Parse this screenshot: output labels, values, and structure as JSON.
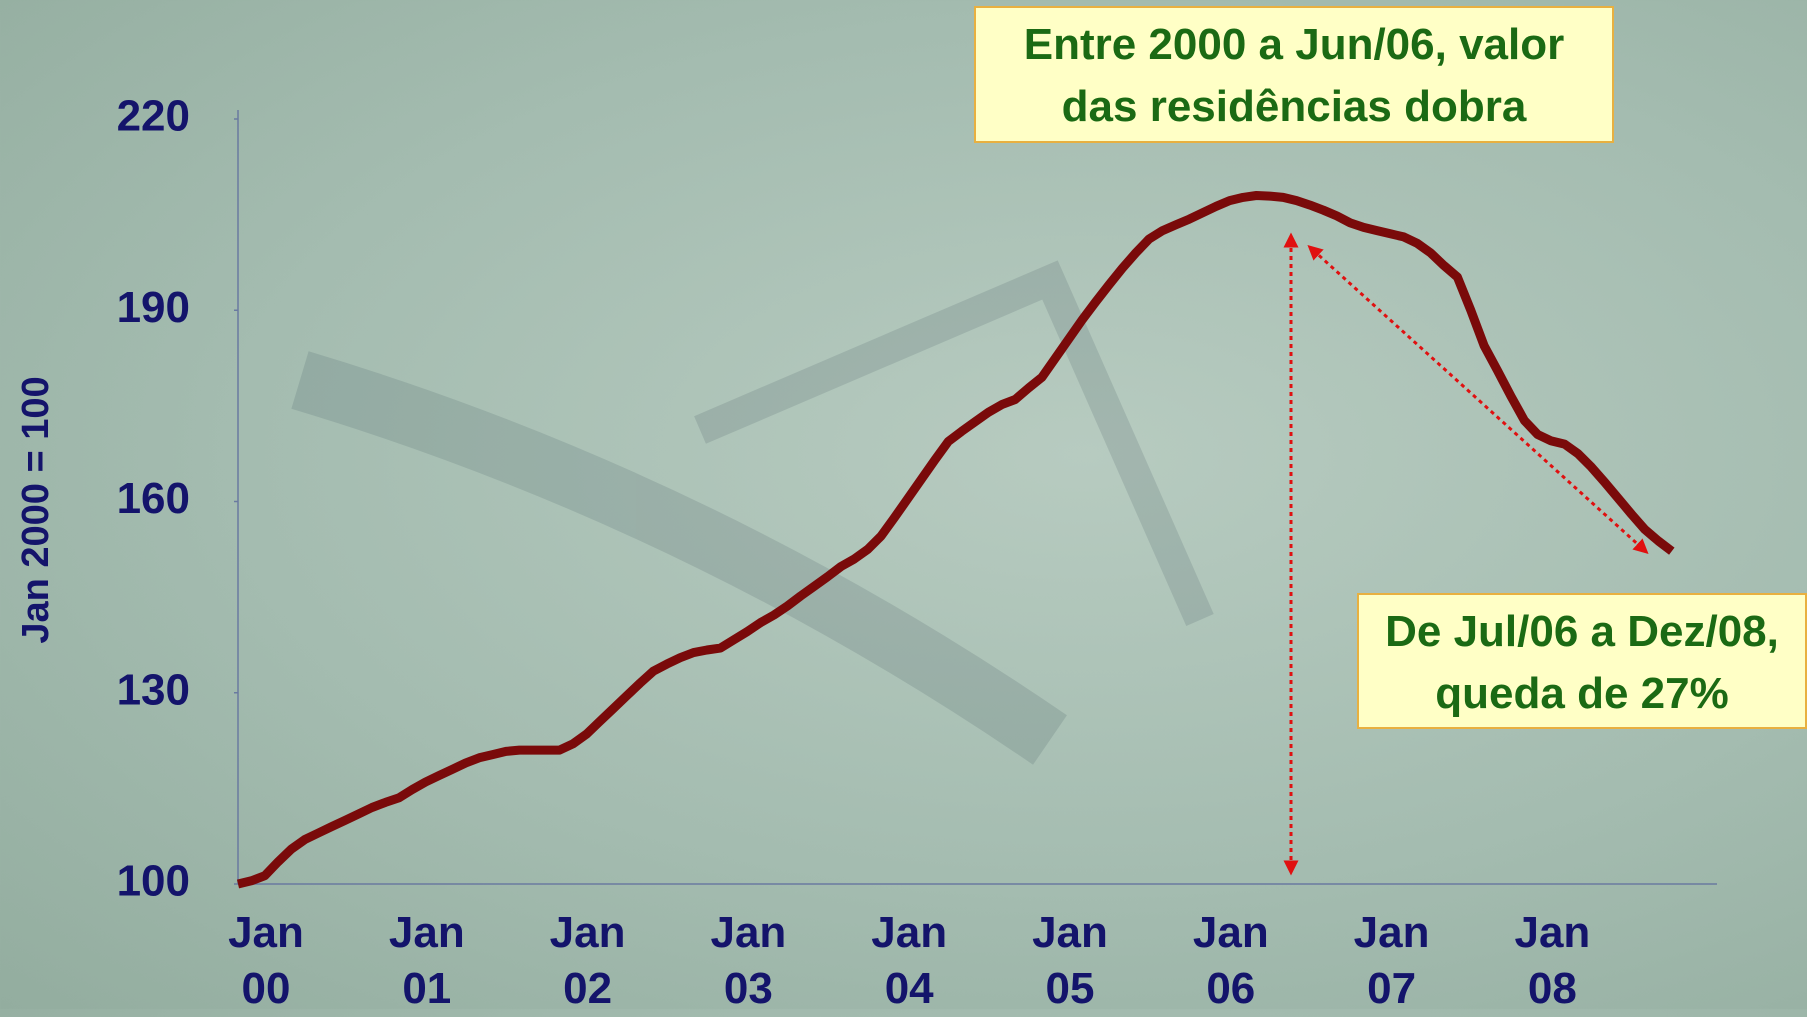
{
  "chart_data": {
    "type": "line",
    "y_label": "Jan 2000 = 100",
    "categories": [
      "Jan 00",
      null,
      null,
      null,
      null,
      null,
      null,
      null,
      null,
      null,
      null,
      null,
      "Jan 01",
      null,
      null,
      null,
      null,
      null,
      null,
      null,
      null,
      null,
      null,
      null,
      "Jan 02",
      null,
      null,
      null,
      null,
      null,
      null,
      null,
      null,
      null,
      null,
      null,
      "Jan 03",
      null,
      null,
      null,
      null,
      null,
      null,
      null,
      null,
      null,
      null,
      null,
      "Jan 04",
      null,
      null,
      null,
      null,
      null,
      null,
      null,
      null,
      null,
      null,
      null,
      "Jan 05",
      null,
      null,
      null,
      null,
      null,
      null,
      null,
      null,
      null,
      null,
      null,
      "Jan 06",
      null,
      null,
      null,
      null,
      null,
      null,
      null,
      null,
      null,
      null,
      null,
      "Jan 07",
      null,
      null,
      null,
      null,
      null,
      null,
      null,
      null,
      null,
      null,
      null,
      "Jan 08",
      null,
      null,
      null,
      null,
      null,
      null,
      null,
      null,
      null,
      null,
      null
    ],
    "values": [
      100,
      100.5,
      101.3,
      103.5,
      105.5,
      107,
      108,
      109,
      110,
      111,
      112,
      112.8,
      113.5,
      114.8,
      116,
      117,
      118,
      119,
      119.8,
      120.3,
      120.8,
      121,
      121,
      121,
      121,
      122,
      123.5,
      125.5,
      127.5,
      129.5,
      131.5,
      133.4,
      134.5,
      135.5,
      136.3,
      136.7,
      137,
      138.3,
      139.6,
      141,
      142.2,
      143.6,
      145.2,
      146.7,
      148.2,
      149.8,
      151,
      152.5,
      154.6,
      157.5,
      160.5,
      163.5,
      166.5,
      169.4,
      171,
      172.5,
      174,
      175.2,
      176,
      177.8,
      179.5,
      182.5,
      185.5,
      188.5,
      191.3,
      194,
      196.6,
      199,
      201.2,
      202.5,
      203.4,
      204.3,
      205.3,
      206.3,
      207.2,
      207.7,
      208,
      207.9,
      207.7,
      207.2,
      206.5,
      205.7,
      204.8,
      203.7,
      203,
      202.5,
      202,
      201.5,
      200.5,
      199,
      197,
      195.2,
      190,
      184.4,
      180.5,
      176.5,
      172.7,
      170.5,
      169.5,
      169,
      167.5,
      165.4,
      163,
      160.5,
      158,
      155.6,
      153.8,
      152.2
    ],
    "color": "#7a0a0a",
    "ylim": [
      100,
      220
    ],
    "yticks": [
      100,
      130,
      160,
      190,
      220
    ],
    "annotations": [
      {
        "lines": [
          "Entre 2000 a Jun/06, valor",
          "das residências dobra"
        ]
      },
      {
        "lines": [
          "De Jul/06 a Dez/08,",
          "queda de 27%"
        ]
      }
    ]
  }
}
